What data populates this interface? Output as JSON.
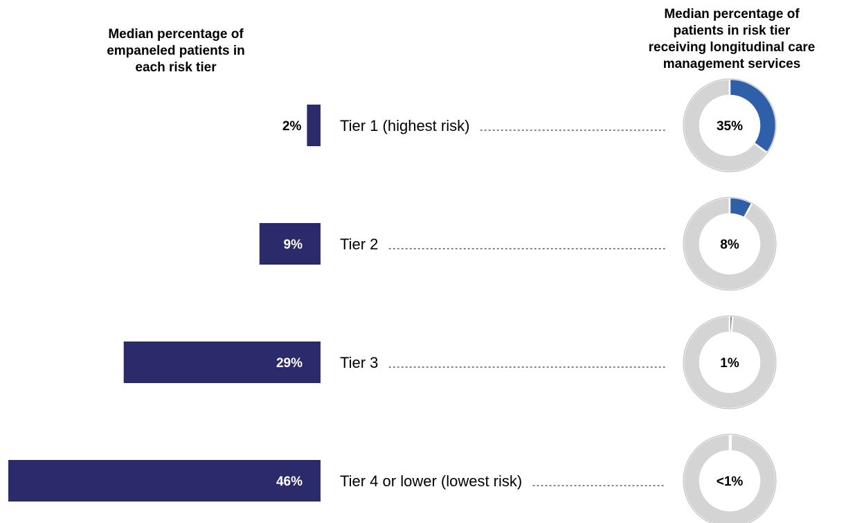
{
  "chart_data": [
    {
      "type": "bar",
      "orientation": "horizontal",
      "title": "Median percentage of empaneled patients in each risk tier",
      "categories": [
        "Tier 1 (highest risk)",
        "Tier 2",
        "Tier 3",
        "Tier 4 or lower (lowest risk)"
      ],
      "values": [
        2,
        9,
        29,
        46
      ],
      "value_labels": [
        "2%",
        "9%",
        "29%",
        "46%"
      ],
      "xlim": [
        0,
        46
      ],
      "bar_direction": "right-to-left",
      "grid": false
    },
    {
      "type": "pie",
      "variant": "donut",
      "title": "Median percentage of patients in risk tier receiving longitudinal care management services",
      "categories": [
        "Tier 1 (highest risk)",
        "Tier 2",
        "Tier 3",
        "Tier 4 or lower (lowest risk)"
      ],
      "values": [
        35,
        8,
        1,
        0.5
      ],
      "value_labels": [
        "35%",
        "8%",
        "1%",
        "<1%"
      ]
    }
  ],
  "colors": {
    "bar": "#2b2a6b",
    "donut_filled": "#2f5fa8",
    "donut_rest": "#d4d4d4",
    "bar_label_inside": "#ffffff",
    "bar_label_outside": "#000000",
    "dots": "#555555"
  }
}
